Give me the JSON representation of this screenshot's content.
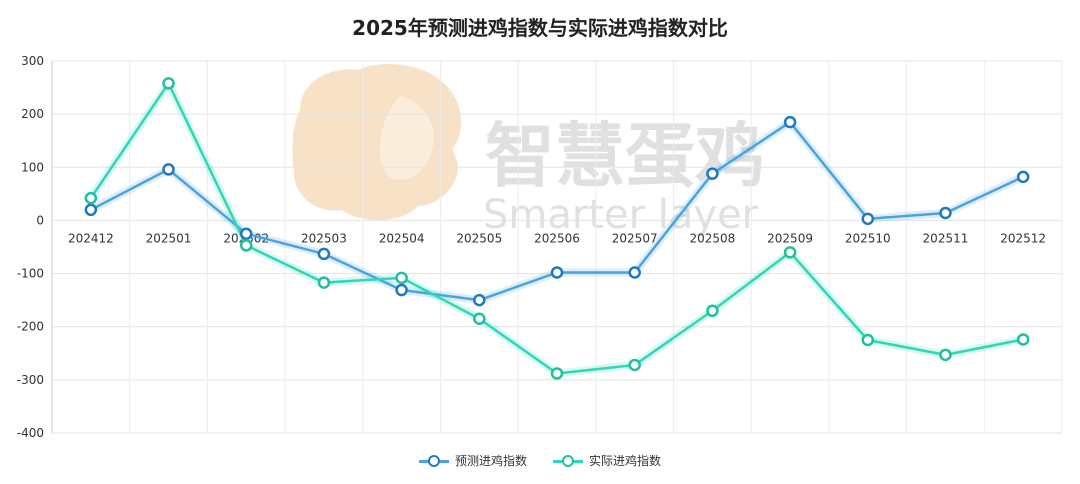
{
  "chart_data": {
    "type": "line",
    "title": "2025年预测进鸡指数与实际进鸡指数对比",
    "categories": [
      "202412",
      "202501",
      "202502",
      "202503",
      "202504",
      "202505",
      "202506",
      "202507",
      "202508",
      "202509",
      "202510",
      "202511",
      "202512"
    ],
    "ylim": [
      -400,
      300
    ],
    "yticks": [
      300,
      200,
      100,
      0,
      -100,
      -200,
      -300,
      -400
    ],
    "grid": true,
    "legend_position": "bottom-center",
    "series": [
      {
        "name": "预测进鸡指数",
        "color": "#4aa3df",
        "marker_color": "#1f78c1",
        "values": [
          20,
          96,
          -25,
          -63,
          -131,
          -150,
          -98,
          -98,
          88,
          185,
          3,
          14,
          82
        ]
      },
      {
        "name": "实际进鸡指数",
        "color": "#2fd6b8",
        "marker_color": "#1fbf9f",
        "values": [
          42,
          258,
          -47,
          -117,
          -108,
          -185,
          -288,
          -272,
          -170,
          -60,
          -225,
          -253,
          -224
        ]
      }
    ]
  },
  "watermark": {
    "brand_cn": "智慧蛋鸡",
    "brand_en": "Smarter layer"
  }
}
